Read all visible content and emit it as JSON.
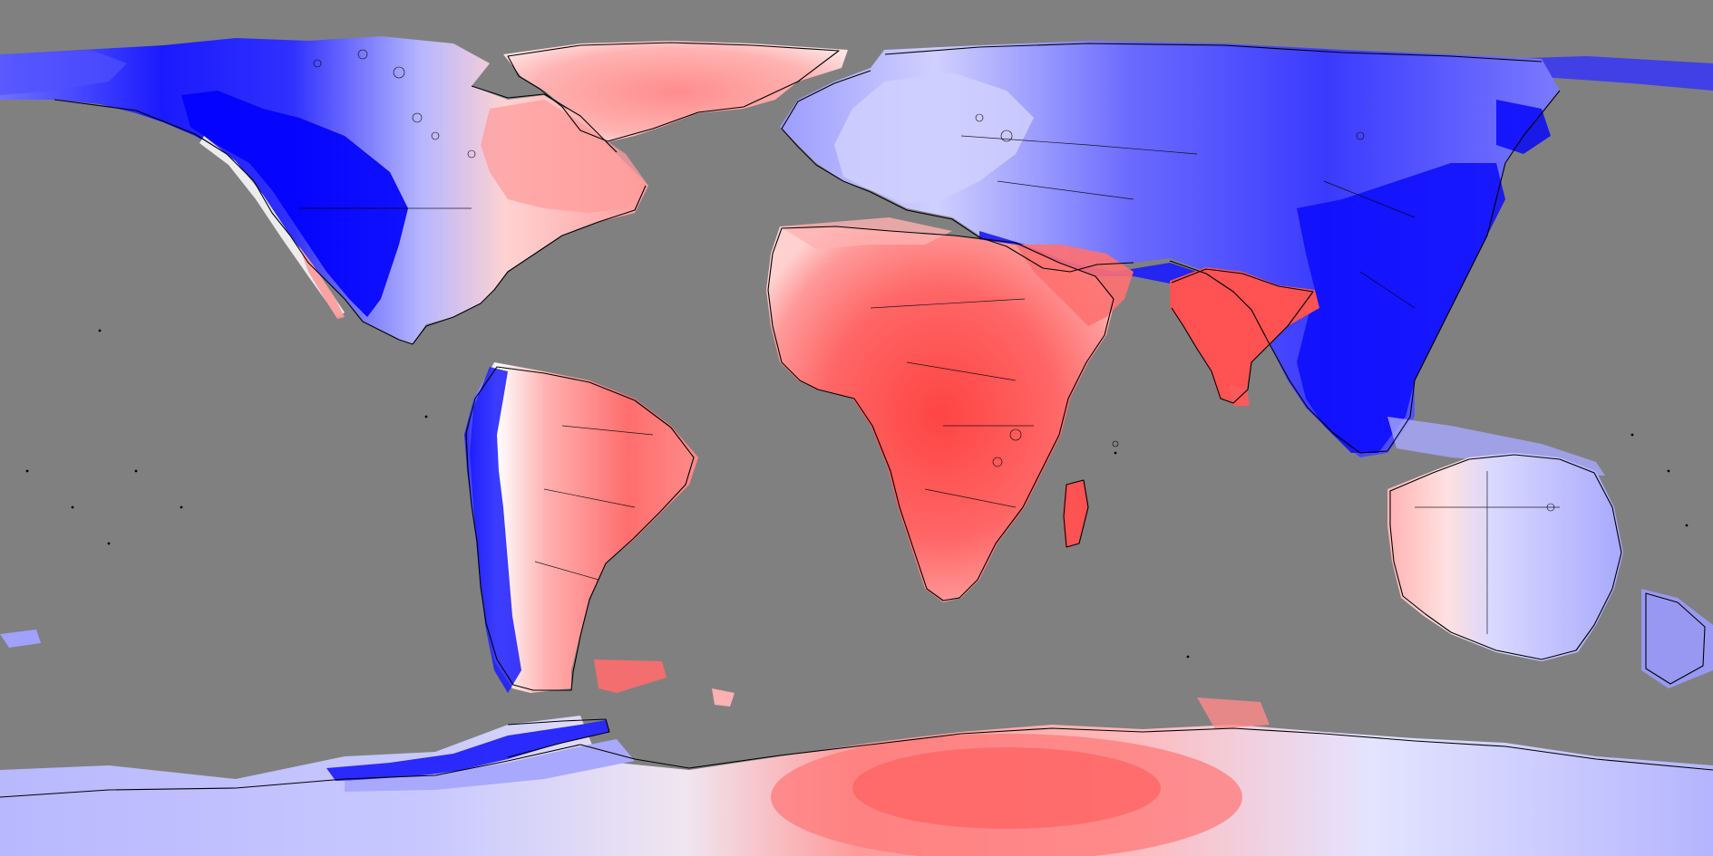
{
  "map": {
    "projection": "equirectangular",
    "ocean_color": "#808080",
    "outline_color": "#000000",
    "color_scale": {
      "low": "#0000ff",
      "mid": "#ffffff",
      "high": "#ff4d4d"
    },
    "regions": [
      {
        "name": "north-america",
        "fill": "blue"
      },
      {
        "name": "greenland",
        "fill": "red"
      },
      {
        "name": "south-america",
        "fill": "red"
      },
      {
        "name": "andes",
        "fill": "blue"
      },
      {
        "name": "africa",
        "fill": "red"
      },
      {
        "name": "europe",
        "fill": "blue"
      },
      {
        "name": "asia",
        "fill": "blue"
      },
      {
        "name": "india",
        "fill": "red"
      },
      {
        "name": "australia",
        "fill": "blue"
      },
      {
        "name": "antarctica-west",
        "fill": "blue"
      },
      {
        "name": "antarctica-east",
        "fill": "red"
      }
    ]
  }
}
